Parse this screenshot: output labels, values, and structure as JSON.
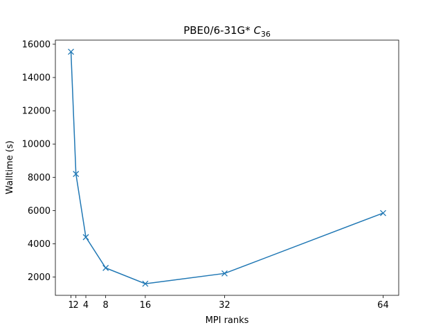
{
  "chart_data": {
    "type": "line",
    "title": {
      "text": "PBE0/6-31G*",
      "symbol": "C",
      "subscript": "36"
    },
    "xlabel": "MPI ranks",
    "ylabel": "Walltime (s)",
    "x": [
      1,
      2,
      4,
      8,
      16,
      32,
      64
    ],
    "series": [
      {
        "color": "#1f77b4",
        "marker": "x",
        "values": [
          15550,
          8200,
          4400,
          2550,
          1600,
          2220,
          5850
        ]
      }
    ],
    "xlim": [
      -2.15,
      67.15
    ],
    "xticks": [
      1,
      2,
      4,
      8,
      16,
      32,
      64
    ],
    "ylim": [
      902.5,
      16247.5
    ],
    "yticks": [
      2000,
      4000,
      6000,
      8000,
      10000,
      12000,
      14000,
      16000
    ],
    "grid": false
  }
}
